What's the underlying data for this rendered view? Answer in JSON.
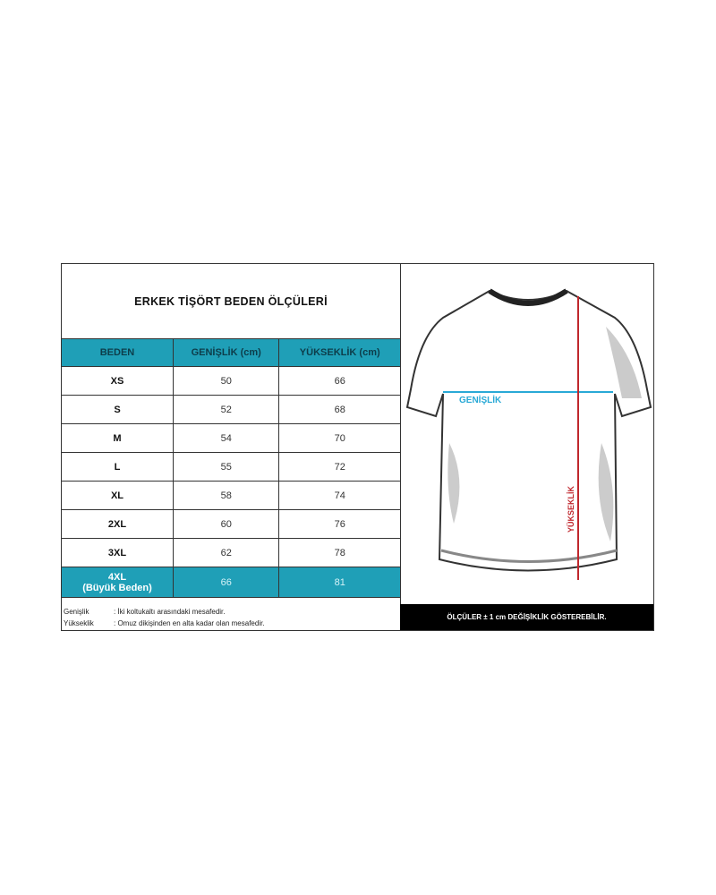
{
  "title": "ERKEK TİŞÖRT BEDEN ÖLÇÜLERİ",
  "headers": [
    "BEDEN",
    "GENİŞLİK (cm)",
    "YÜKSEKLİK (cm)"
  ],
  "rows": [
    {
      "size": "XS",
      "width": "50",
      "height": "66"
    },
    {
      "size": "S",
      "width": "52",
      "height": "68"
    },
    {
      "size": "M",
      "width": "54",
      "height": "70"
    },
    {
      "size": "L",
      "width": "55",
      "height": "72"
    },
    {
      "size": "XL",
      "width": "58",
      "height": "74"
    },
    {
      "size": "2XL",
      "width": "60",
      "height": "76"
    },
    {
      "size": "3XL",
      "width": "62",
      "height": "78"
    }
  ],
  "big": {
    "size": "4XL",
    "note": "(Büyük Beden)",
    "width": "66",
    "height": "81"
  },
  "notes": [
    {
      "term": "Genişlik",
      "desc": ": İki koltukaltı arasındaki mesafedir."
    },
    {
      "term": "Yükseklik",
      "desc": ": Omuz dikişinden en alta kadar olan mesafedir."
    }
  ],
  "diagram": {
    "width_label": "GENİŞLİK",
    "height_label": "YÜKSEKLİK",
    "width_color": "#29a9d6",
    "height_color": "#c0272d"
  },
  "disclaimer": "ÖLÇÜLER ± 1 cm DEĞİŞİKLİK GÖSTEREBİLİR.",
  "colors": {
    "accent": "#1f9fb7"
  }
}
